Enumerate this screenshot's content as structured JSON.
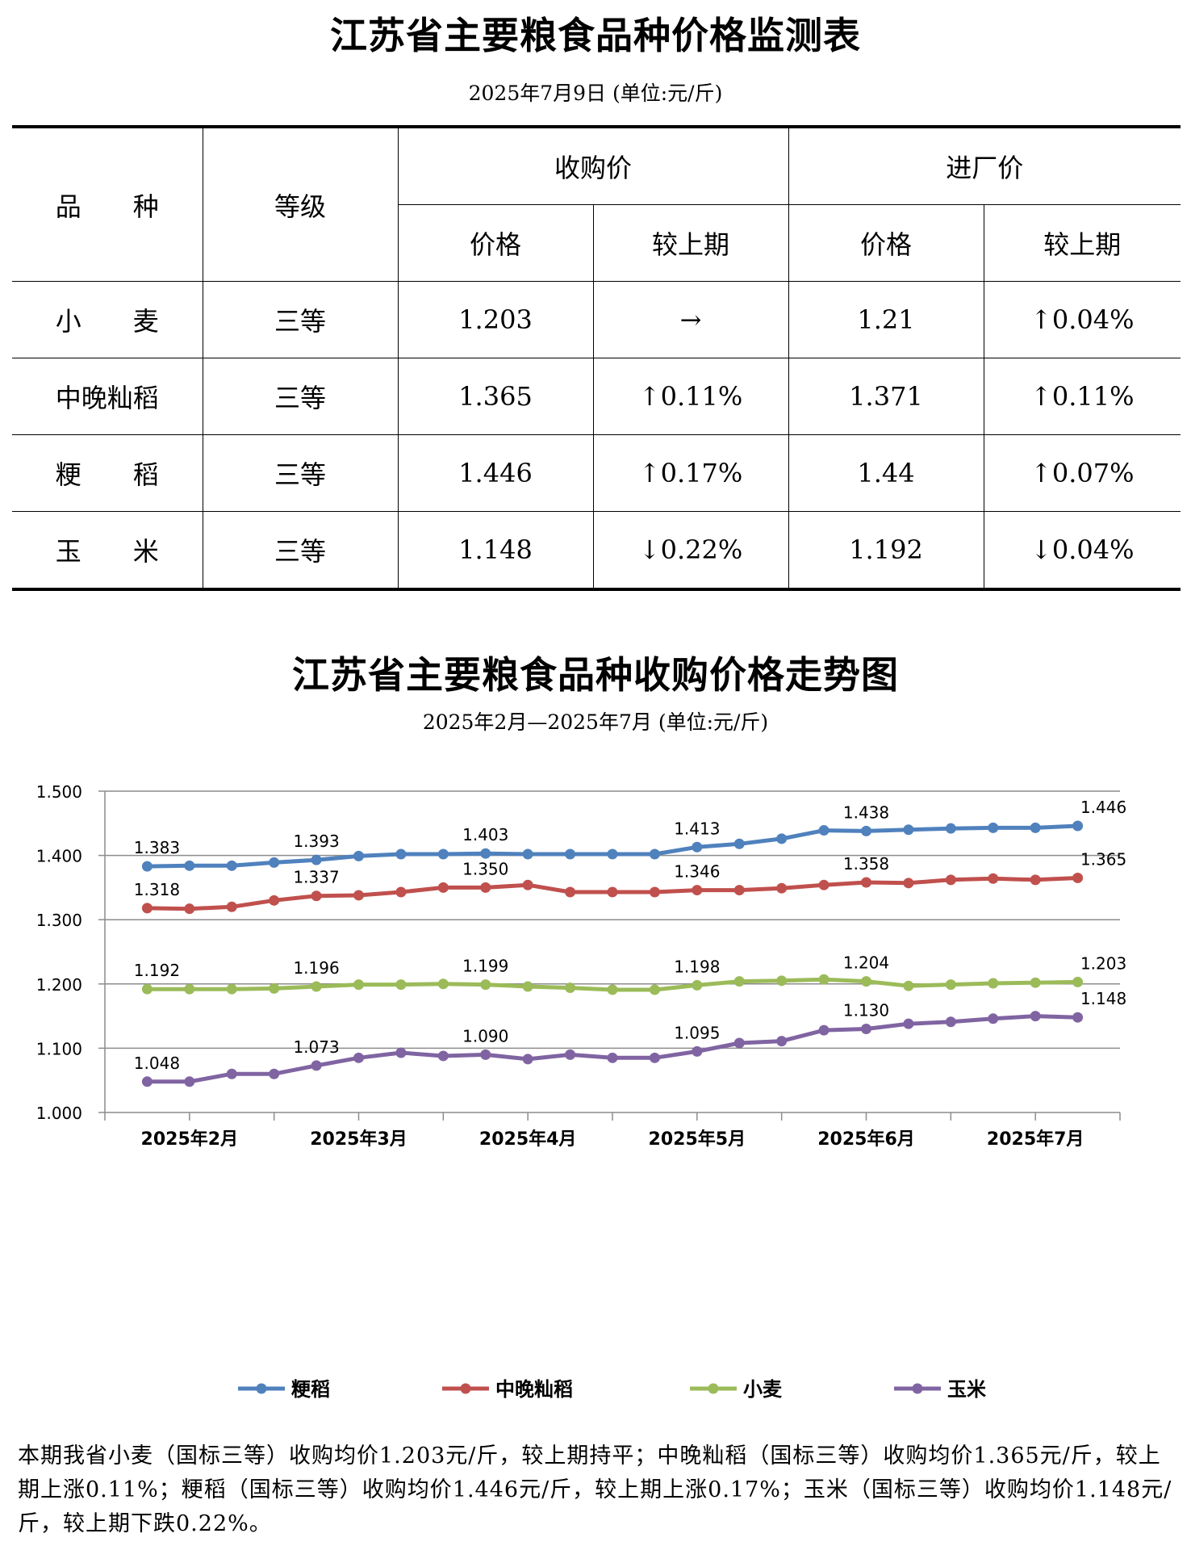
{
  "table": {
    "title": "江苏省主要粮食品种价格监测表",
    "subtitle": "2025年7月9日  (单位:元/斤)",
    "headers": {
      "variety": "品　　种",
      "grade": "等级",
      "purchase": "收购价",
      "factory": "进厂价",
      "price": "价格",
      "change": "较上期"
    },
    "rows": [
      {
        "variety": "小　　麦",
        "grade": "三等",
        "purchase_price": "1.203",
        "purchase_change": "→",
        "factory_price": "1.21",
        "factory_change": "↑0.04%"
      },
      {
        "variety": "中晚籼稻",
        "grade": "三等",
        "purchase_price": "1.365",
        "purchase_change": "↑0.11%",
        "factory_price": "1.371",
        "factory_change": "↑0.11%"
      },
      {
        "variety": "粳　　稻",
        "grade": "三等",
        "purchase_price": "1.446",
        "purchase_change": "↑0.17%",
        "factory_price": "1.44",
        "factory_change": "↑0.07%"
      },
      {
        "variety": "玉　　米",
        "grade": "三等",
        "purchase_price": "1.148",
        "purchase_change": "↓0.22%",
        "factory_price": "1.192",
        "factory_change": "↓0.04%"
      }
    ]
  },
  "chart_data": {
    "type": "line",
    "title": "江苏省主要粮食品种收购价格走势图",
    "subtitle": "2025年2月—2025年7月  (单位:元/斤)",
    "xlabel": "",
    "ylabel": "",
    "ylim": [
      1.0,
      1.5
    ],
    "y_ticks": [
      "1.000",
      "1.100",
      "1.200",
      "1.300",
      "1.400",
      "1.500"
    ],
    "x_tick_labels": [
      "2025年2月",
      "2025年3月",
      "2025年4月",
      "2025年5月",
      "2025年6月",
      "2025年7月"
    ],
    "points_per_month": 4,
    "grid": true,
    "legend_position": "bottom",
    "series": [
      {
        "name": "粳稻",
        "color": "#4F81BD",
        "values": [
          1.383,
          1.384,
          1.384,
          1.389,
          1.393,
          1.399,
          1.402,
          1.402,
          1.403,
          1.402,
          1.402,
          1.402,
          1.402,
          1.413,
          1.418,
          1.426,
          1.439,
          1.438,
          1.44,
          1.442,
          1.443,
          1.443,
          1.446
        ],
        "labels": {
          "0": "1.383",
          "4": "1.393",
          "8": "1.403",
          "13": "1.413",
          "17": "1.438",
          "22": "1.446"
        }
      },
      {
        "name": "中晚籼稻",
        "color": "#C0504D",
        "values": [
          1.318,
          1.317,
          1.32,
          1.33,
          1.337,
          1.338,
          1.343,
          1.35,
          1.35,
          1.354,
          1.343,
          1.343,
          1.343,
          1.346,
          1.346,
          1.349,
          1.354,
          1.358,
          1.357,
          1.362,
          1.364,
          1.362,
          1.365
        ],
        "labels": {
          "0": "1.318",
          "4": "1.337",
          "8": "1.350",
          "13": "1.346",
          "17": "1.358",
          "22": "1.365"
        }
      },
      {
        "name": "小麦",
        "color": "#9BBB59",
        "values": [
          1.192,
          1.192,
          1.192,
          1.193,
          1.196,
          1.199,
          1.199,
          1.2,
          1.199,
          1.196,
          1.194,
          1.191,
          1.191,
          1.198,
          1.204,
          1.205,
          1.207,
          1.204,
          1.197,
          1.199,
          1.201,
          1.202,
          1.203
        ],
        "labels": {
          "0": "1.192",
          "4": "1.196",
          "8": "1.199",
          "13": "1.198",
          "17": "1.204",
          "22": "1.203"
        }
      },
      {
        "name": "玉米",
        "color": "#8064A2",
        "values": [
          1.048,
          1.048,
          1.06,
          1.06,
          1.073,
          1.085,
          1.093,
          1.088,
          1.09,
          1.083,
          1.09,
          1.085,
          1.085,
          1.095,
          1.108,
          1.111,
          1.128,
          1.13,
          1.138,
          1.141,
          1.146,
          1.15,
          1.148
        ],
        "labels": {
          "0": "1.048",
          "4": "1.073",
          "8": "1.090",
          "13": "1.095",
          "17": "1.130",
          "22": "1.148"
        }
      }
    ]
  },
  "note": "本期我省小麦（国标三等）收购均价1.203元/斤，较上期持平；中晚籼稻（国标三等）收购均价1.365元/斤，较上期上涨0.11%；粳稻（国标三等）收购均价1.446元/斤，较上期上涨0.17%；玉米（国标三等）收购均价1.148元/斤，较上期下跌0.22%。"
}
